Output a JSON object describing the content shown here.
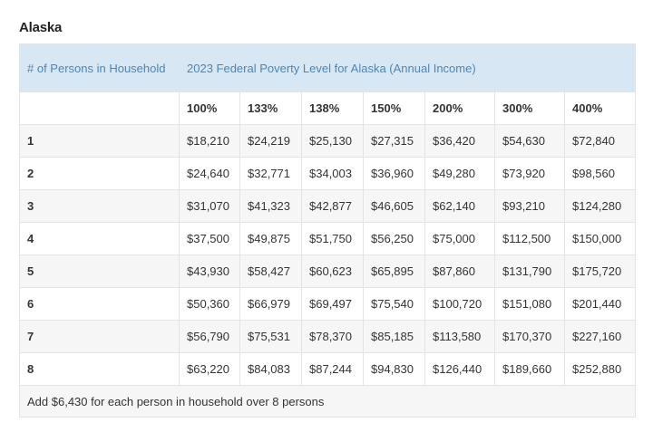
{
  "section_title": "Alaska",
  "table": {
    "header": {
      "persons_label": "# of Persons in Household",
      "title": "2023 Federal Poverty Level for Alaska (Annual Income)"
    },
    "percent_labels": [
      "100%",
      "133%",
      "138%",
      "150%",
      "200%",
      "300%",
      "400%"
    ],
    "rows": [
      {
        "persons": "1",
        "values": [
          "$18,210",
          "$24,219",
          "$25,130",
          "$27,315",
          "$36,420",
          "$54,630",
          "$72,840"
        ]
      },
      {
        "persons": "2",
        "values": [
          "$24,640",
          "$32,771",
          "$34,003",
          "$36,960",
          "$49,280",
          "$73,920",
          "$98,560"
        ]
      },
      {
        "persons": "3",
        "values": [
          "$31,070",
          "$41,323",
          "$42,877",
          "$46,605",
          "$62,140",
          "$93,210",
          "$124,280"
        ]
      },
      {
        "persons": "4",
        "values": [
          "$37,500",
          "$49,875",
          "$51,750",
          "$56,250",
          "$75,000",
          "$112,500",
          "$150,000"
        ]
      },
      {
        "persons": "5",
        "values": [
          "$43,930",
          "$58,427",
          "$60,623",
          "$65,895",
          "$87,860",
          "$131,790",
          "$175,720"
        ]
      },
      {
        "persons": "6",
        "values": [
          "$50,360",
          "$66,979",
          "$69,497",
          "$75,540",
          "$100,720",
          "$151,080",
          "$201,440"
        ]
      },
      {
        "persons": "7",
        "values": [
          "$56,790",
          "$75,531",
          "$78,370",
          "$85,185",
          "$113,580",
          "$170,370",
          "$227,160"
        ]
      },
      {
        "persons": "8",
        "values": [
          "$63,220",
          "$84,083",
          "$87,244",
          "$94,830",
          "$126,440",
          "$189,660",
          "$252,880"
        ]
      }
    ],
    "footer": "Add $6,430 for each person in household over 8 persons"
  },
  "colors": {
    "header_bg": "#d7e8f4",
    "header_text": "#4a86b8",
    "border": "#e3e3e3",
    "stripe": "#f6f6f6"
  }
}
